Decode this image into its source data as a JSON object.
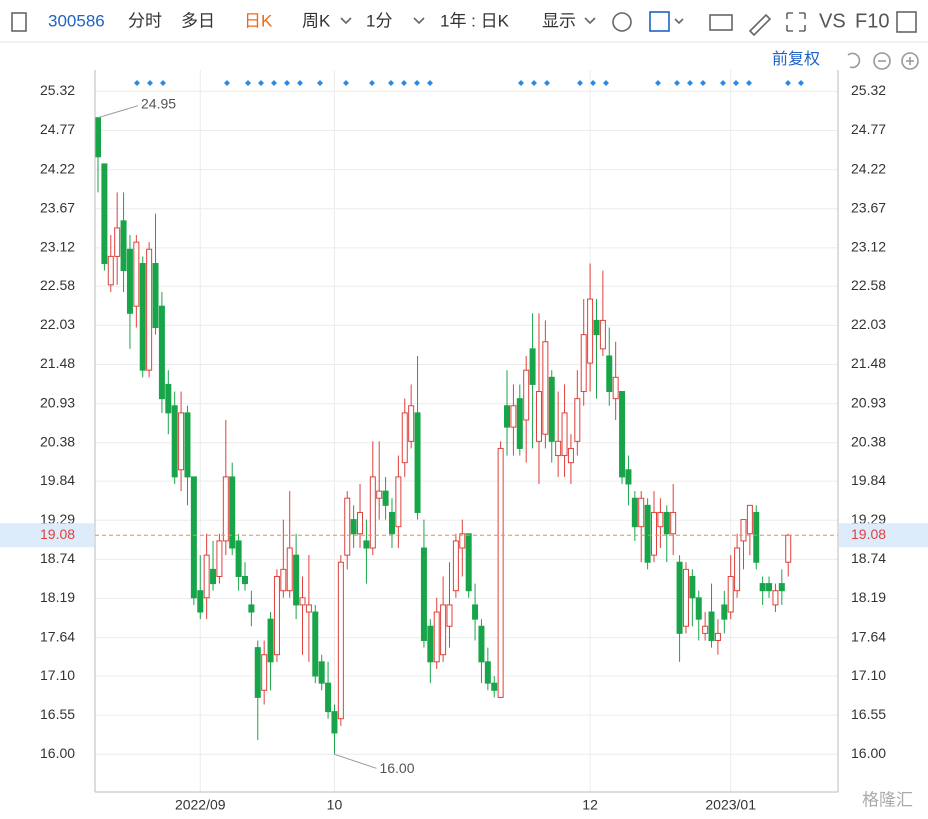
{
  "toolbar": {
    "code": "300586",
    "tabs": [
      "分时",
      "多日",
      "日K",
      "周K",
      "1分"
    ],
    "period": "1年 : 日K",
    "display": "显示",
    "compare": "VS",
    "f10": "F10"
  },
  "adjust": "前复权",
  "watermark": "格隆汇",
  "chart_data": {
    "type": "candlestick",
    "up_color": "#e0403c",
    "down_color": "#18a54a",
    "ylim": [
      15.47,
      25.55
    ],
    "yticks": [
      {
        "value": 16,
        "label": "16.00"
      },
      16.55,
      {
        "value": 17.1,
        "label": "17.10"
      },
      17.64,
      18.19,
      18.74,
      19.29,
      19.84,
      20.38,
      20.93,
      21.48,
      22.03,
      22.58,
      23.12,
      23.67,
      24.22,
      24.77,
      25.32
    ],
    "last_price": 19.08,
    "high_label": "24.95",
    "low_label": "16.00",
    "categories": [
      null,
      null,
      null,
      null,
      null,
      null,
      null,
      null,
      null,
      null,
      null,
      null,
      null,
      null,
      null,
      null,
      "2022/09",
      null,
      null,
      null,
      null,
      null,
      null,
      null,
      null,
      null,
      null,
      null,
      null,
      null,
      null,
      null,
      null,
      null,
      null,
      null,
      null,
      "10",
      null,
      null,
      null,
      null,
      null,
      null,
      null,
      null,
      null,
      null,
      null,
      null,
      null,
      null,
      null,
      null,
      null,
      null,
      null,
      null,
      null,
      null,
      null,
      null,
      null,
      null,
      null,
      null,
      null,
      null,
      null,
      null,
      null,
      null,
      null,
      null,
      null,
      null,
      null,
      "12",
      null,
      null,
      null,
      null,
      null,
      null,
      null,
      null,
      null,
      null,
      null,
      null,
      null,
      null,
      null,
      null,
      null,
      null,
      null,
      null,
      null,
      "2023/01",
      null,
      null,
      null,
      null,
      null,
      null,
      null,
      null,
      null,
      null,
      null
    ],
    "ohlc": [
      [
        24.95,
        24.95,
        23.9,
        24.4
      ],
      [
        24.3,
        24.3,
        22.8,
        22.9
      ],
      [
        22.6,
        23.3,
        22.5,
        23.0
      ],
      [
        23.0,
        23.9,
        22.6,
        23.4
      ],
      [
        23.5,
        23.9,
        22.5,
        22.8
      ],
      [
        23.1,
        23.3,
        21.7,
        22.2
      ],
      [
        22.3,
        23.3,
        22.0,
        23.2
      ],
      [
        22.9,
        23.0,
        21.3,
        21.4
      ],
      [
        21.4,
        23.2,
        21.3,
        23.1
      ],
      [
        22.9,
        23.6,
        21.9,
        22.0
      ],
      [
        22.3,
        22.5,
        20.8,
        21.0
      ],
      [
        21.2,
        21.4,
        20.5,
        20.8
      ],
      [
        20.9,
        21.1,
        19.8,
        19.9
      ],
      [
        20.0,
        21.1,
        19.7,
        20.8
      ],
      [
        20.8,
        20.9,
        19.5,
        19.9
      ],
      [
        19.9,
        19.9,
        18.1,
        18.2
      ],
      [
        18.3,
        18.8,
        17.9,
        18.0
      ],
      [
        18.2,
        19.1,
        17.9,
        18.8
      ],
      [
        18.6,
        19.0,
        18.3,
        18.4
      ],
      [
        18.5,
        19.1,
        18.4,
        19.0
      ],
      [
        19.0,
        20.7,
        18.8,
        19.9
      ],
      [
        19.9,
        20.1,
        18.8,
        18.9
      ],
      [
        19.0,
        19.1,
        18.3,
        18.5
      ],
      [
        18.5,
        18.7,
        18.3,
        18.4
      ],
      [
        18.1,
        18.3,
        17.8,
        18.0
      ],
      [
        17.5,
        17.6,
        16.2,
        16.8
      ],
      [
        16.9,
        17.6,
        16.7,
        17.4
      ],
      [
        17.9,
        18.0,
        16.9,
        17.3
      ],
      [
        17.4,
        18.6,
        17.3,
        18.5
      ],
      [
        18.3,
        19.3,
        18.2,
        18.6
      ],
      [
        18.3,
        19.7,
        18.2,
        18.9
      ],
      [
        18.8,
        19.1,
        17.9,
        18.1
      ],
      [
        18.1,
        18.5,
        17.4,
        18.2
      ],
      [
        18.0,
        18.8,
        17.3,
        18.1
      ],
      [
        18.0,
        18.1,
        17.0,
        17.1
      ],
      [
        17.3,
        17.4,
        16.9,
        17.0
      ],
      [
        17.0,
        17.3,
        16.5,
        16.6
      ],
      [
        16.6,
        16.7,
        16.0,
        16.3
      ],
      [
        16.5,
        18.8,
        16.4,
        18.7
      ],
      [
        18.8,
        19.7,
        18.6,
        19.6
      ],
      [
        19.3,
        19.5,
        18.9,
        19.1
      ],
      [
        19.1,
        19.8,
        18.9,
        19.4
      ],
      [
        19.0,
        19.3,
        18.4,
        18.9
      ],
      [
        18.9,
        20.4,
        18.8,
        19.9
      ],
      [
        19.6,
        20.4,
        19.3,
        19.7
      ],
      [
        19.7,
        19.9,
        19.3,
        19.5
      ],
      [
        19.4,
        19.6,
        18.9,
        19.1
      ],
      [
        19.2,
        20.2,
        18.9,
        19.9
      ],
      [
        20.1,
        21.0,
        19.9,
        20.8
      ],
      [
        20.4,
        21.2,
        20.3,
        20.9
      ],
      [
        20.8,
        21.6,
        19.3,
        19.4
      ],
      [
        18.9,
        19.3,
        17.5,
        17.6
      ],
      [
        17.8,
        17.9,
        17.0,
        17.3
      ],
      [
        17.3,
        18.2,
        17.2,
        18.0
      ],
      [
        17.4,
        18.5,
        17.3,
        18.1
      ],
      [
        17.8,
        18.7,
        17.5,
        18.1
      ],
      [
        18.3,
        19.1,
        18.2,
        19.0
      ],
      [
        18.9,
        19.3,
        18.5,
        19.1
      ],
      [
        19.1,
        19.1,
        18.2,
        18.3
      ],
      [
        18.1,
        18.4,
        17.6,
        17.9
      ],
      [
        17.8,
        17.9,
        17.0,
        17.3
      ],
      [
        17.3,
        17.5,
        16.9,
        17.0
      ],
      [
        17.0,
        17.1,
        16.8,
        16.9
      ],
      [
        16.8,
        20.4,
        16.8,
        20.3
      ],
      [
        20.9,
        21.4,
        20.2,
        20.6
      ],
      [
        20.6,
        21.2,
        20.2,
        20.9
      ],
      [
        21.0,
        21.2,
        20.2,
        20.3
      ],
      [
        20.7,
        21.6,
        20.1,
        21.4
      ],
      [
        21.7,
        22.2,
        20.3,
        21.2
      ],
      [
        20.4,
        22.2,
        19.8,
        21.1
      ],
      [
        20.5,
        22.1,
        20.3,
        21.8
      ],
      [
        21.3,
        21.4,
        20.1,
        20.4
      ],
      [
        20.2,
        21.1,
        19.9,
        20.4
      ],
      [
        20.2,
        21.2,
        19.9,
        20.8
      ],
      [
        20.1,
        20.5,
        19.8,
        20.3
      ],
      [
        20.4,
        21.4,
        20.2,
        21.0
      ],
      [
        21.1,
        22.4,
        20.9,
        21.9
      ],
      [
        21.5,
        22.9,
        21.1,
        22.4
      ],
      [
        22.1,
        22.4,
        21.0,
        21.9
      ],
      [
        21.7,
        22.8,
        21.6,
        22.1
      ],
      [
        21.6,
        22.0,
        20.9,
        21.1
      ],
      [
        21.0,
        21.8,
        20.7,
        21.3
      ],
      [
        21.1,
        21.1,
        19.8,
        19.9
      ],
      [
        20.0,
        20.2,
        19.5,
        19.8
      ],
      [
        19.6,
        19.7,
        19.0,
        19.2
      ],
      [
        19.2,
        19.7,
        18.7,
        19.6
      ],
      [
        19.5,
        19.6,
        18.6,
        18.7
      ],
      [
        18.8,
        19.7,
        18.7,
        19.4
      ],
      [
        19.2,
        19.6,
        18.9,
        19.4
      ],
      [
        19.4,
        19.5,
        18.7,
        19.1
      ],
      [
        19.1,
        19.8,
        18.8,
        19.4
      ],
      [
        18.7,
        18.8,
        17.3,
        17.7
      ],
      [
        17.8,
        18.7,
        17.7,
        18.6
      ],
      [
        18.5,
        18.6,
        17.8,
        18.2
      ],
      [
        18.2,
        18.3,
        17.6,
        17.9
      ],
      [
        17.7,
        18.0,
        17.6,
        17.8
      ],
      [
        18.0,
        18.4,
        17.5,
        17.6
      ],
      [
        17.6,
        17.9,
        17.4,
        17.7
      ],
      [
        18.1,
        18.3,
        17.7,
        17.9
      ],
      [
        18.0,
        18.8,
        17.9,
        18.5
      ],
      [
        18.3,
        19.1,
        18.2,
        18.9
      ],
      [
        19.0,
        19.3,
        18.6,
        19.3
      ],
      [
        19.1,
        19.5,
        18.8,
        19.5
      ],
      [
        19.4,
        19.5,
        18.6,
        18.7
      ],
      [
        18.4,
        18.5,
        18.1,
        18.3
      ],
      [
        18.4,
        18.5,
        18.2,
        18.3
      ],
      [
        18.1,
        18.4,
        18.0,
        18.3
      ],
      [
        18.4,
        18.6,
        18.1,
        18.3
      ],
      [
        18.7,
        19.1,
        18.5,
        19.08
      ]
    ]
  }
}
